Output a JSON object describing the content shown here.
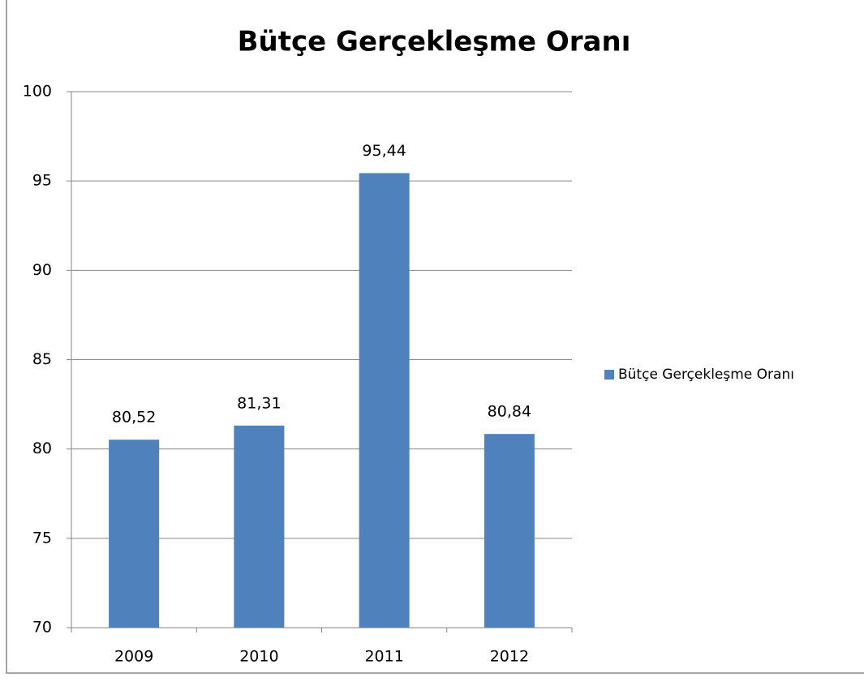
{
  "chart_data": {
    "type": "bar",
    "title": "Bütçe Gerçekleşme Oranı",
    "categories": [
      "2009",
      "2010",
      "2011",
      "2012"
    ],
    "series": [
      {
        "name": "Bütçe Gerçekleşme Oranı",
        "color": "#4f81bd",
        "values": [
          80.52,
          81.31,
          95.44,
          80.84
        ],
        "value_labels": [
          "80,52",
          "81,31",
          "95,44",
          "80,84"
        ]
      }
    ],
    "ylim": [
      70,
      100
    ],
    "yticks": [
      70,
      75,
      80,
      85,
      90,
      95,
      100
    ],
    "grid": true,
    "legend": "right"
  }
}
